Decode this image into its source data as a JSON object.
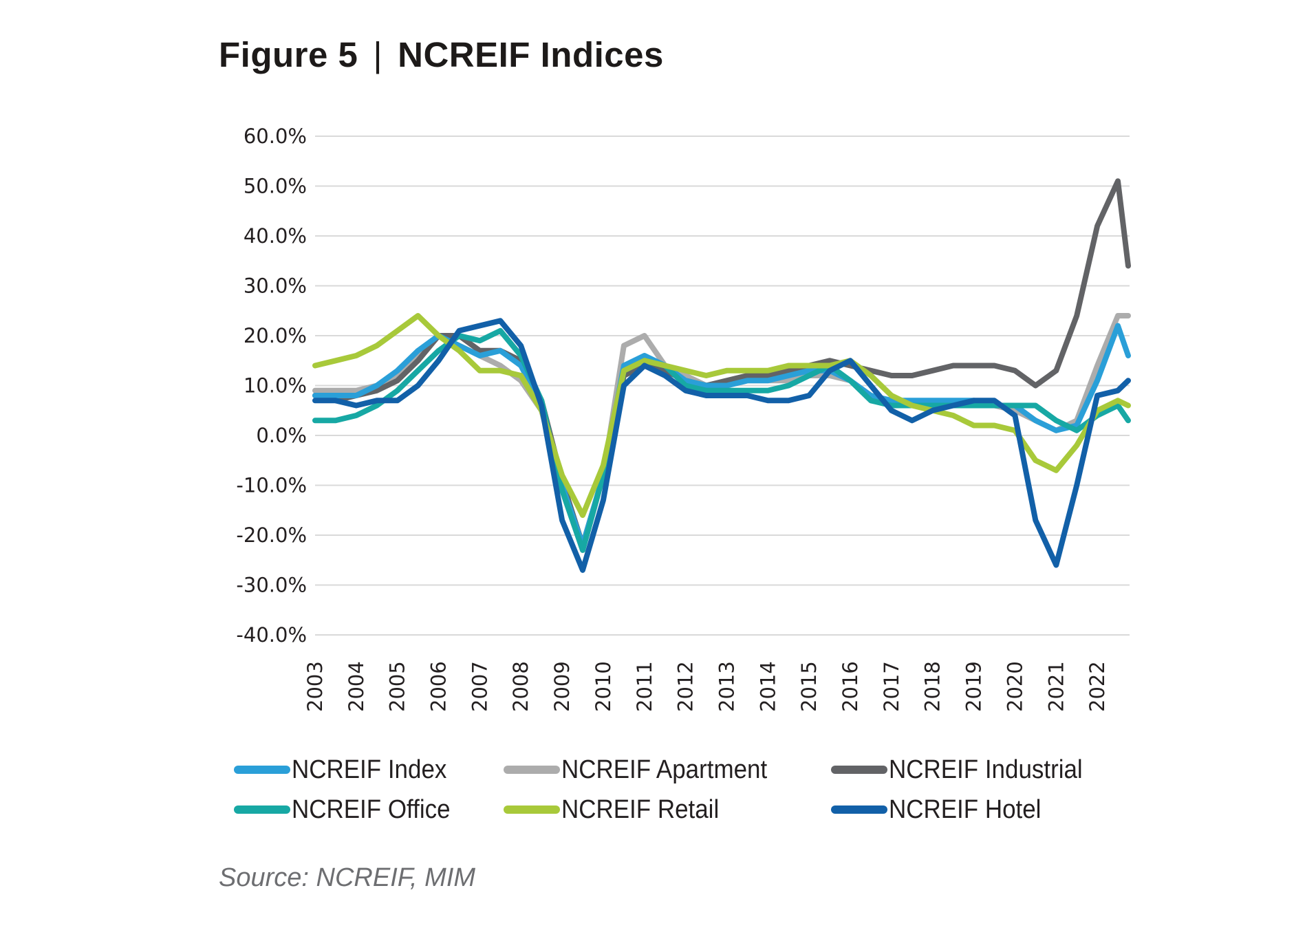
{
  "title": {
    "figure": "Figure 5",
    "separator": "|",
    "name": "NCREIF Indices"
  },
  "source": "Source: NCREIF, MIM",
  "chart_data": {
    "type": "line",
    "title": "Figure 5 | NCREIF Indices",
    "xlabel": "",
    "ylabel": "",
    "ylim": [
      -40,
      60
    ],
    "yticks": [
      60,
      50,
      40,
      30,
      20,
      10,
      0,
      -10,
      -20,
      -30,
      -40
    ],
    "ytick_labels": [
      "60.0%",
      "50.0%",
      "40.0%",
      "30.0%",
      "20.0%",
      "10.0%",
      "0.0%",
      "-10.0%",
      "-20.0%",
      "-30.0%",
      "-40.0%"
    ],
    "xlim": [
      2003,
      2022.75
    ],
    "xticks": [
      "2003",
      "2004",
      "2005",
      "2006",
      "2007",
      "2008",
      "2009",
      "2010",
      "2011",
      "2012",
      "2013",
      "2014",
      "2015",
      "2016",
      "2017",
      "2018",
      "2019",
      "2020",
      "2021",
      "2022"
    ],
    "grid": true,
    "legend_position": "bottom",
    "x": [
      2003,
      2003.5,
      2004,
      2004.5,
      2005,
      2005.5,
      2006,
      2006.5,
      2007,
      2007.5,
      2008,
      2008.5,
      2009,
      2009.5,
      2010,
      2010.5,
      2011,
      2011.5,
      2012,
      2012.5,
      2013,
      2013.5,
      2014,
      2014.5,
      2015,
      2015.5,
      2016,
      2016.5,
      2017,
      2017.5,
      2018,
      2018.5,
      2019,
      2019.5,
      2020,
      2020.5,
      2021,
      2021.5,
      2022,
      2022.5,
      2022.75
    ],
    "series": [
      {
        "name": "NCREIF Index",
        "color": "#2a9fd8",
        "values": [
          8,
          8,
          8,
          10,
          13,
          17,
          20,
          18,
          16,
          17,
          14,
          6,
          -10,
          -22,
          -8,
          14,
          16,
          14,
          11,
          10,
          10,
          11,
          11,
          12,
          13,
          13,
          11,
          8,
          7,
          7,
          7,
          7,
          7,
          6,
          6,
          3,
          1,
          2,
          11,
          22,
          16
        ]
      },
      {
        "name": "NCREIF Apartment",
        "color": "#acacac",
        "values": [
          9,
          9,
          9,
          10,
          12,
          16,
          20,
          18,
          16,
          14,
          11,
          5,
          -11,
          -23,
          -8,
          18,
          20,
          14,
          12,
          10,
          10,
          11,
          11,
          11,
          12,
          12,
          11,
          8,
          7,
          6,
          6,
          6,
          6,
          6,
          5,
          3,
          1,
          3,
          14,
          24,
          24
        ]
      },
      {
        "name": "NCREIF Industrial",
        "color": "#626366",
        "values": [
          8,
          7,
          8,
          9,
          11,
          15,
          20,
          20,
          17,
          17,
          15,
          7,
          -9,
          -22,
          -8,
          12,
          14,
          13,
          11,
          10,
          11,
          12,
          12,
          13,
          14,
          15,
          14,
          13,
          12,
          12,
          13,
          14,
          14,
          14,
          13,
          10,
          13,
          24,
          42,
          51,
          34
        ]
      },
      {
        "name": "NCREIF Office",
        "color": "#17a8a4",
        "values": [
          3,
          3,
          4,
          6,
          9,
          13,
          17,
          20,
          19,
          21,
          16,
          7,
          -11,
          -23,
          -8,
          13,
          15,
          14,
          10,
          9,
          9,
          9,
          9,
          10,
          12,
          14,
          11,
          7,
          6,
          6,
          6,
          6,
          6,
          6,
          6,
          6,
          3,
          1,
          4,
          6,
          3
        ]
      },
      {
        "name": "NCREIF Retail",
        "color": "#a8c93a",
        "values": [
          14,
          15,
          16,
          18,
          21,
          24,
          20,
          17,
          13,
          13,
          12,
          5,
          -8,
          -16,
          -6,
          13,
          15,
          14,
          13,
          12,
          13,
          13,
          13,
          14,
          14,
          14,
          15,
          12,
          8,
          6,
          5,
          4,
          2,
          2,
          1,
          -5,
          -7,
          -2,
          5,
          7,
          6
        ]
      },
      {
        "name": "NCREIF Hotel",
        "color": "#1260a8",
        "values": [
          7,
          7,
          6,
          7,
          7,
          10,
          15,
          21,
          22,
          23,
          18,
          6,
          -17,
          -27,
          -13,
          10,
          14,
          12,
          9,
          8,
          8,
          8,
          7,
          7,
          8,
          13,
          15,
          10,
          5,
          3,
          5,
          6,
          7,
          7,
          4,
          -17,
          -26,
          -10,
          8,
          9,
          11
        ]
      }
    ]
  }
}
